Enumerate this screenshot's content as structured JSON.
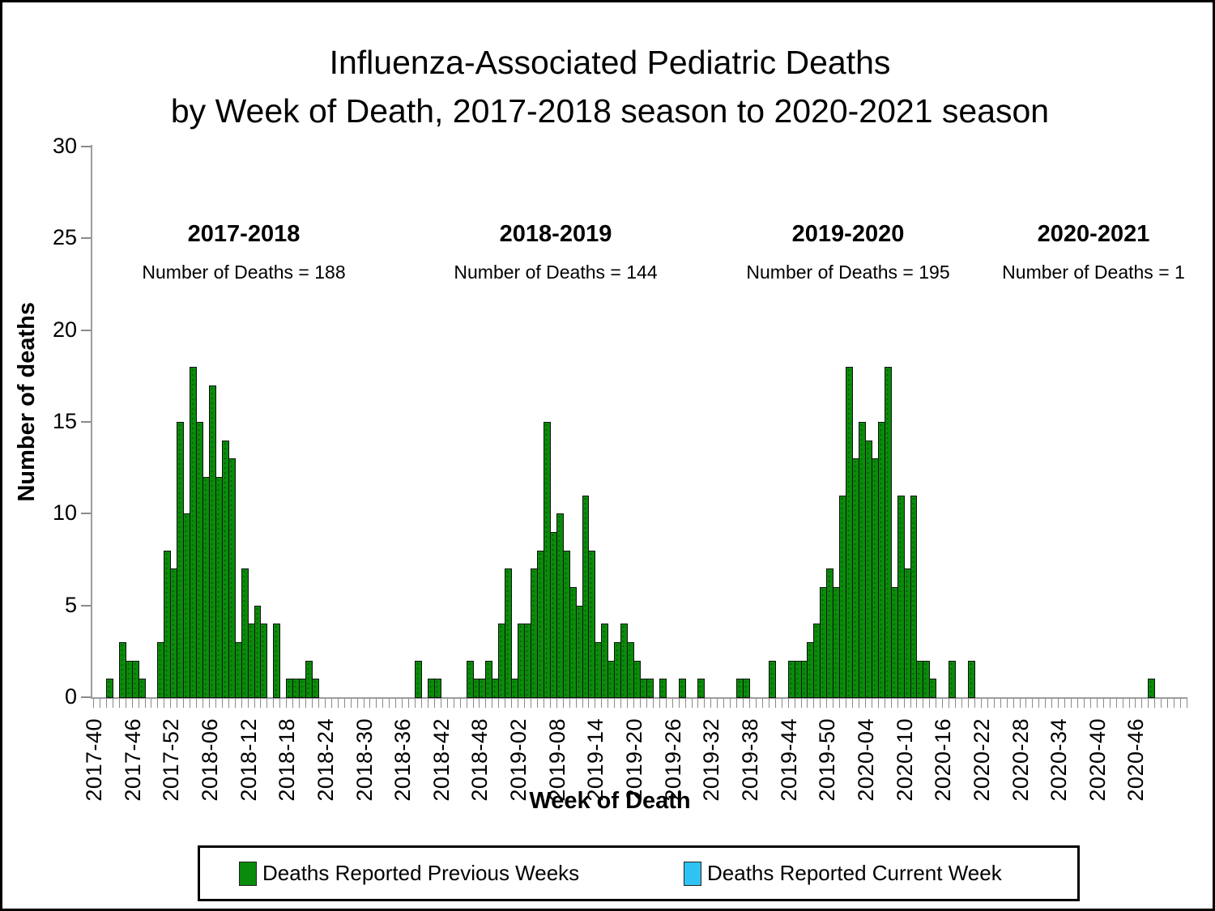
{
  "page": {
    "title_line1": "Influenza-Associated Pediatric Deaths",
    "title_line2": "by Week of Death, 2017-2018 season to 2020-2021 season"
  },
  "chart_data": {
    "type": "bar",
    "title": "Influenza-Associated Pediatric Deaths by Week of Death, 2017-2018 season to 2020-2021 season",
    "xlabel": "Week of Death",
    "ylabel": "Number of deaths",
    "ylim": [
      0,
      30
    ],
    "yticks": [
      0,
      5,
      10,
      15,
      20,
      25,
      30
    ],
    "grid": false,
    "legend_position": "bottom",
    "x_axis_first_week": "2017-40",
    "x_axis_last_week": "2020-53",
    "xtick_label_every_n_weeks": 6,
    "xtick_labels": [
      "2017-40",
      "2017-46",
      "2017-52",
      "2018-06",
      "2018-12",
      "2018-18",
      "2018-24",
      "2018-30",
      "2018-36",
      "2018-42",
      "2018-48",
      "2019-02",
      "2019-08",
      "2019-14",
      "2019-20",
      "2019-26",
      "2019-32",
      "2019-38",
      "2019-44",
      "2019-50",
      "2020-04",
      "2020-10",
      "2020-16",
      "2020-22",
      "2020-28",
      "2020-34",
      "2020-40",
      "2020-46"
    ],
    "season_annotations": [
      {
        "season": "2017-2018",
        "deaths_label": "Number of Deaths = 188",
        "deaths": 188
      },
      {
        "season": "2018-2019",
        "deaths_label": "Number of Deaths = 144",
        "deaths": 144
      },
      {
        "season": "2019-2020",
        "deaths_label": "Number of Deaths = 195",
        "deaths": 195
      },
      {
        "season": "2020-2021",
        "deaths_label": "Number of Deaths = 1",
        "deaths": 1
      }
    ],
    "series": [
      {
        "name": "Deaths Reported Previous Weeks",
        "color": "#0a8c0a",
        "data": [
          {
            "week": "2017-42",
            "deaths": 1
          },
          {
            "week": "2017-44",
            "deaths": 3
          },
          {
            "week": "2017-45",
            "deaths": 2
          },
          {
            "week": "2017-46",
            "deaths": 2
          },
          {
            "week": "2017-47",
            "deaths": 1
          },
          {
            "week": "2017-50",
            "deaths": 3
          },
          {
            "week": "2017-51",
            "deaths": 8
          },
          {
            "week": "2017-52",
            "deaths": 7
          },
          {
            "week": "2018-01",
            "deaths": 15
          },
          {
            "week": "2018-02",
            "deaths": 10
          },
          {
            "week": "2018-03",
            "deaths": 18
          },
          {
            "week": "2018-04",
            "deaths": 15
          },
          {
            "week": "2018-05",
            "deaths": 12
          },
          {
            "week": "2018-06",
            "deaths": 17
          },
          {
            "week": "2018-07",
            "deaths": 12
          },
          {
            "week": "2018-08",
            "deaths": 14
          },
          {
            "week": "2018-09",
            "deaths": 13
          },
          {
            "week": "2018-10",
            "deaths": 3
          },
          {
            "week": "2018-11",
            "deaths": 7
          },
          {
            "week": "2018-12",
            "deaths": 4
          },
          {
            "week": "2018-13",
            "deaths": 5
          },
          {
            "week": "2018-14",
            "deaths": 4
          },
          {
            "week": "2018-16",
            "deaths": 4
          },
          {
            "week": "2018-18",
            "deaths": 1
          },
          {
            "week": "2018-19",
            "deaths": 1
          },
          {
            "week": "2018-20",
            "deaths": 1
          },
          {
            "week": "2018-21",
            "deaths": 2
          },
          {
            "week": "2018-22",
            "deaths": 1
          },
          {
            "week": "2018-38",
            "deaths": 2
          },
          {
            "week": "2018-40",
            "deaths": 1
          },
          {
            "week": "2018-41",
            "deaths": 1
          },
          {
            "week": "2018-46",
            "deaths": 2
          },
          {
            "week": "2018-47",
            "deaths": 1
          },
          {
            "week": "2018-48",
            "deaths": 1
          },
          {
            "week": "2018-49",
            "deaths": 2
          },
          {
            "week": "2018-50",
            "deaths": 1
          },
          {
            "week": "2018-51",
            "deaths": 4
          },
          {
            "week": "2018-52",
            "deaths": 7
          },
          {
            "week": "2019-01",
            "deaths": 1
          },
          {
            "week": "2019-02",
            "deaths": 4
          },
          {
            "week": "2019-03",
            "deaths": 4
          },
          {
            "week": "2019-04",
            "deaths": 7
          },
          {
            "week": "2019-05",
            "deaths": 8
          },
          {
            "week": "2019-06",
            "deaths": 15
          },
          {
            "week": "2019-07",
            "deaths": 9
          },
          {
            "week": "2019-08",
            "deaths": 10
          },
          {
            "week": "2019-09",
            "deaths": 8
          },
          {
            "week": "2019-10",
            "deaths": 6
          },
          {
            "week": "2019-11",
            "deaths": 5
          },
          {
            "week": "2019-12",
            "deaths": 11
          },
          {
            "week": "2019-13",
            "deaths": 8
          },
          {
            "week": "2019-14",
            "deaths": 3
          },
          {
            "week": "2019-15",
            "deaths": 4
          },
          {
            "week": "2019-16",
            "deaths": 2
          },
          {
            "week": "2019-17",
            "deaths": 3
          },
          {
            "week": "2019-18",
            "deaths": 4
          },
          {
            "week": "2019-19",
            "deaths": 3
          },
          {
            "week": "2019-20",
            "deaths": 2
          },
          {
            "week": "2019-21",
            "deaths": 1
          },
          {
            "week": "2019-22",
            "deaths": 1
          },
          {
            "week": "2019-24",
            "deaths": 1
          },
          {
            "week": "2019-27",
            "deaths": 1
          },
          {
            "week": "2019-30",
            "deaths": 1
          },
          {
            "week": "2019-36",
            "deaths": 1
          },
          {
            "week": "2019-37",
            "deaths": 1
          },
          {
            "week": "2019-41",
            "deaths": 2
          },
          {
            "week": "2019-44",
            "deaths": 2
          },
          {
            "week": "2019-45",
            "deaths": 2
          },
          {
            "week": "2019-46",
            "deaths": 2
          },
          {
            "week": "2019-47",
            "deaths": 3
          },
          {
            "week": "2019-48",
            "deaths": 4
          },
          {
            "week": "2019-49",
            "deaths": 6
          },
          {
            "week": "2019-50",
            "deaths": 7
          },
          {
            "week": "2019-51",
            "deaths": 6
          },
          {
            "week": "2019-52",
            "deaths": 11
          },
          {
            "week": "2020-01",
            "deaths": 18
          },
          {
            "week": "2020-02",
            "deaths": 13
          },
          {
            "week": "2020-03",
            "deaths": 15
          },
          {
            "week": "2020-04",
            "deaths": 14
          },
          {
            "week": "2020-05",
            "deaths": 13
          },
          {
            "week": "2020-06",
            "deaths": 15
          },
          {
            "week": "2020-07",
            "deaths": 18
          },
          {
            "week": "2020-08",
            "deaths": 6
          },
          {
            "week": "2020-09",
            "deaths": 11
          },
          {
            "week": "2020-10",
            "deaths": 7
          },
          {
            "week": "2020-11",
            "deaths": 11
          },
          {
            "week": "2020-12",
            "deaths": 2
          },
          {
            "week": "2020-13",
            "deaths": 2
          },
          {
            "week": "2020-14",
            "deaths": 1
          },
          {
            "week": "2020-17",
            "deaths": 2
          },
          {
            "week": "2020-20",
            "deaths": 2
          },
          {
            "week": "2020-48",
            "deaths": 1
          }
        ]
      },
      {
        "name": "Deaths Reported Current Week",
        "color": "#2fc3f3",
        "data": []
      }
    ]
  },
  "legend": {
    "items": [
      {
        "label": "Deaths Reported Previous Weeks",
        "color": "#0a8c0a"
      },
      {
        "label": "Deaths Reported Current Week",
        "color": "#2fc3f3"
      }
    ]
  }
}
